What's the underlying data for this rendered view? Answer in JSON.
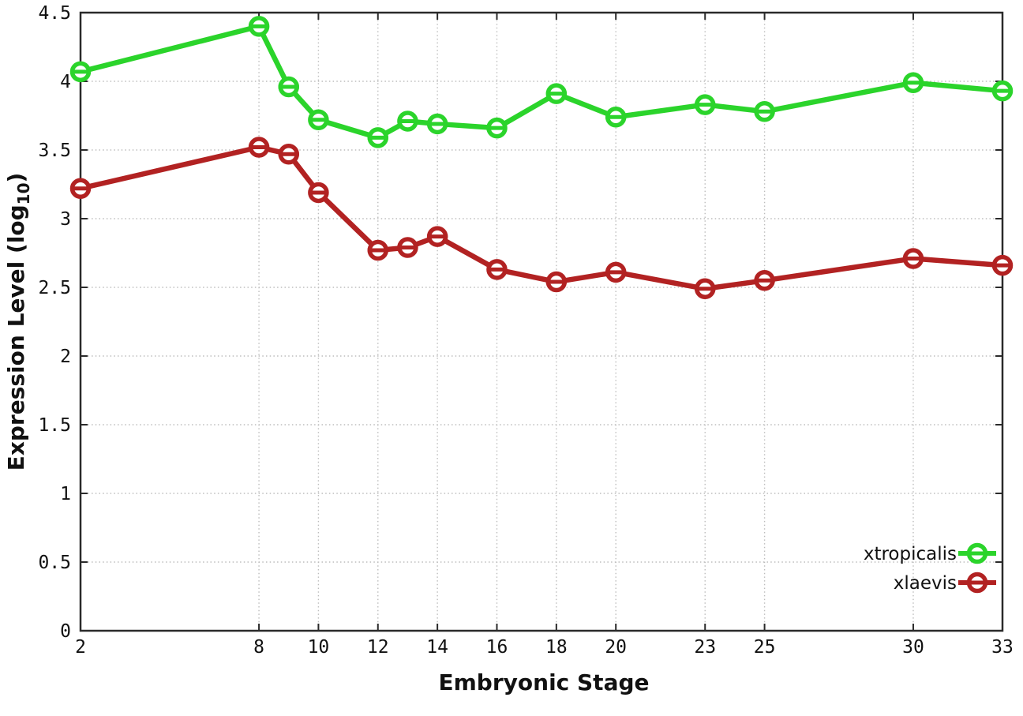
{
  "chart_data": {
    "type": "line",
    "x": [
      2,
      8,
      9,
      10,
      12,
      13,
      14,
      16,
      18,
      20,
      23,
      25,
      30,
      33
    ],
    "series": [
      {
        "name": "xtropicalis",
        "color": "#2bd42b",
        "values": [
          4.07,
          4.4,
          3.96,
          3.72,
          3.59,
          3.71,
          3.69,
          3.66,
          3.91,
          3.74,
          3.83,
          3.78,
          3.99,
          3.93
        ]
      },
      {
        "name": "xlaevis",
        "color": "#b22222",
        "values": [
          3.22,
          3.52,
          3.47,
          3.19,
          2.77,
          2.79,
          2.87,
          2.63,
          2.54,
          2.61,
          2.49,
          2.55,
          2.71,
          2.66
        ]
      }
    ],
    "title": "",
    "xlabel": "Embryonic Stage",
    "ylabel": "Expression Level (log10)",
    "ylabel_parts": [
      "Expression Level (log",
      "10",
      ")"
    ],
    "xlim": [
      2,
      33
    ],
    "ylim": [
      0,
      4.5
    ],
    "xticks": [
      2,
      8,
      10,
      12,
      14,
      16,
      18,
      20,
      23,
      25,
      30,
      33
    ],
    "ytick_step": 0.5,
    "grid": true,
    "legend": {
      "position": "bottom-right",
      "entries": [
        {
          "label": "xtropicalis",
          "color": "#2bd42b"
        },
        {
          "label": "xlaevis",
          "color": "#b22222"
        }
      ]
    },
    "style": {
      "background": "#ffffff",
      "border_color": "#2a2a2a",
      "grid_color": "#bdbdbd",
      "text_color": "#111111",
      "marker": "open-circle-with-horizontal-bar"
    }
  }
}
